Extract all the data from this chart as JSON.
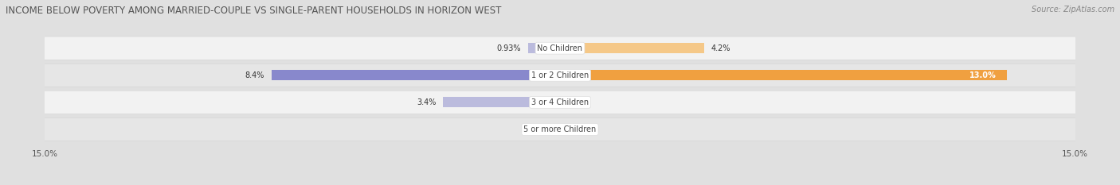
{
  "title": "INCOME BELOW POVERTY AMONG MARRIED-COUPLE VS SINGLE-PARENT HOUSEHOLDS IN HORIZON WEST",
  "source": "Source: ZipAtlas.com",
  "categories": [
    "No Children",
    "1 or 2 Children",
    "3 or 4 Children",
    "5 or more Children"
  ],
  "married_values": [
    0.93,
    8.4,
    3.4,
    0.0
  ],
  "single_values": [
    4.2,
    13.0,
    0.0,
    0.0
  ],
  "max_val": 15.0,
  "married_color_dark": "#8888cc",
  "married_color_light": "#bbbbdd",
  "single_color_dark": "#f0a040",
  "single_color_light": "#f5c888",
  "title_fontsize": 8.5,
  "source_fontsize": 7.0,
  "label_fontsize": 7.0,
  "cat_fontsize": 7.0,
  "axis_fontsize": 7.5,
  "legend_fontsize": 7.5,
  "bg_color": "#e0e0e0",
  "row_light": "#f2f2f2",
  "row_dark": "#e6e6e6"
}
